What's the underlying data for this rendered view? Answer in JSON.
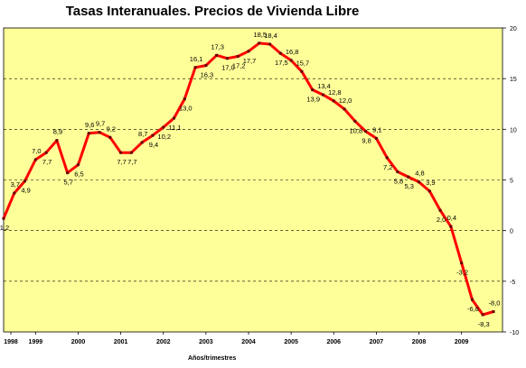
{
  "chart_data": {
    "type": "line",
    "title": "Tasas Interanuales. Precios de Vivienda Libre",
    "xlabel": "Años/trimestres",
    "ylabel": "",
    "ylim": [
      -10,
      20
    ],
    "yticks": [
      "20",
      "15",
      "10",
      "5",
      "0",
      "-5",
      "-10"
    ],
    "year_labels": [
      "1998",
      "1999",
      "2000",
      "2001",
      "2002",
      "2003",
      "2004",
      "2005",
      "2006",
      "2007",
      "2008",
      "2009"
    ],
    "grid": true,
    "colors": {
      "plot_bg": "#ffff99",
      "line": "#ff0000",
      "grid": "#000000"
    },
    "series": [
      {
        "values": [
          1.2,
          3.7,
          4.9,
          7.0,
          7.7,
          8.9,
          5.7,
          6.5,
          9.6,
          9.7,
          9.2,
          7.7,
          7.7,
          8.7,
          9.4,
          10.2,
          11.1,
          13.0,
          16.1,
          16.3,
          17.3,
          17.0,
          17.2,
          17.7,
          18.5,
          18.4,
          17.5,
          16.8,
          15.7,
          13.9,
          13.4,
          12.8,
          12.0,
          10.8,
          9.8,
          9.1,
          7.2,
          5.8,
          5.3,
          4.8,
          3.9,
          2.0,
          0.4,
          -3.2,
          -6.8,
          -8.3,
          -8.0
        ],
        "labels": [
          "1,2",
          "3,7",
          "4,9",
          "7,0",
          "7,7",
          "8,9",
          "5,7",
          "6,5",
          "9,6",
          "9,7",
          "9,2",
          "7,7",
          "7,7",
          "8,7",
          "9,4",
          "10,2",
          "11,1",
          "13,0",
          "16,1",
          "16,3",
          "17,3",
          "17,0",
          "17,2",
          "17,7",
          "18,5",
          "18,4",
          "17,5",
          "16,8",
          "15,7",
          "13,9",
          "13,4",
          "12,8",
          "12,0",
          "10,8",
          "9,8",
          "9,1",
          "7,2",
          "5,8",
          "5,3",
          "4,8",
          "3,9",
          "2,0",
          "0,4",
          "-3,2",
          "-6,8",
          "-8,3",
          "-8,0"
        ]
      }
    ]
  }
}
